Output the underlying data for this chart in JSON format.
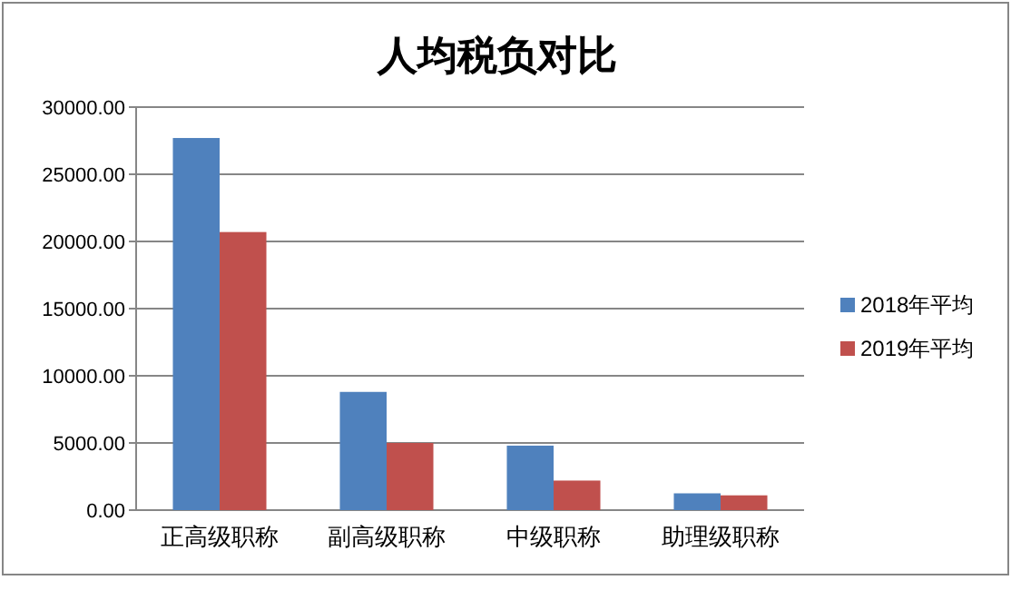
{
  "chart_data": {
    "type": "bar",
    "title": "人均税负对比",
    "categories": [
      "正高级职称",
      "副高级职称",
      "中级职称",
      "助理级职称"
    ],
    "series": [
      {
        "name": "2018年平均",
        "color": "#4f81bd",
        "values": [
          27700,
          8800,
          4800,
          1250
        ]
      },
      {
        "name": "2019年平均",
        "color": "#c0504d",
        "values": [
          20700,
          5000,
          2200,
          1100
        ]
      }
    ],
    "ylim": [
      0,
      30000
    ],
    "yticks": [
      {
        "value": 0,
        "label": "0.00"
      },
      {
        "value": 5000,
        "label": "5000.00"
      },
      {
        "value": 10000,
        "label": "10000.00"
      },
      {
        "value": 15000,
        "label": "15000.00"
      },
      {
        "value": 20000,
        "label": "20000.00"
      },
      {
        "value": 25000,
        "label": "25000.00"
      },
      {
        "value": 30000,
        "label": "30000.00"
      }
    ],
    "grid": "y",
    "legend": "right"
  }
}
